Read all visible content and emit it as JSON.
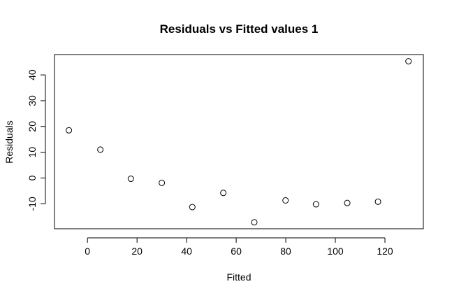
{
  "chart_data": {
    "type": "scatter",
    "title": "Residuals vs Fitted values 1",
    "xlabel": "Fitted",
    "ylabel": "Residuals",
    "xlim": [
      -13.3,
      135.5
    ],
    "ylim": [
      -19.7,
      47.9
    ],
    "xticks": [
      0,
      20,
      40,
      60,
      80,
      100,
      120
    ],
    "yticks": [
      -10,
      0,
      10,
      20,
      30,
      40
    ],
    "grid": false,
    "legend": "none",
    "points": [
      {
        "x": -7.5,
        "y": 18.5
      },
      {
        "x": 5.2,
        "y": 11.0
      },
      {
        "x": 17.5,
        "y": -0.3
      },
      {
        "x": 30.0,
        "y": -1.9
      },
      {
        "x": 42.3,
        "y": -11.3
      },
      {
        "x": 54.8,
        "y": -5.8
      },
      {
        "x": 67.3,
        "y": -17.2
      },
      {
        "x": 79.9,
        "y": -8.7
      },
      {
        "x": 92.2,
        "y": -10.2
      },
      {
        "x": 104.8,
        "y": -9.7
      },
      {
        "x": 117.2,
        "y": -9.2
      },
      {
        "x": 129.5,
        "y": 45.3
      }
    ]
  }
}
